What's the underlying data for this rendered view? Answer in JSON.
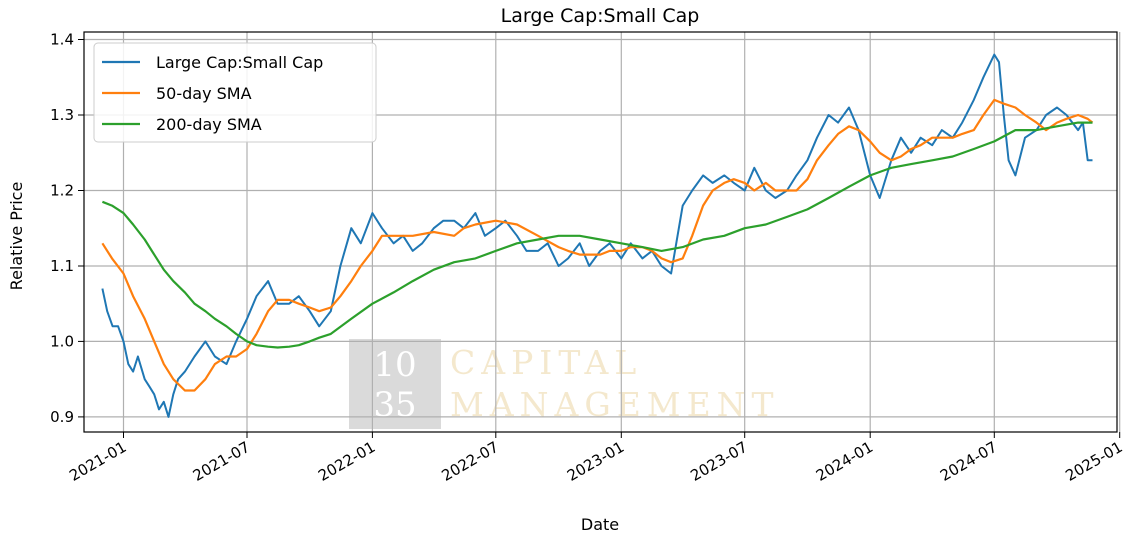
{
  "chart_data": {
    "type": "line",
    "title": "Large Cap:Small Cap",
    "xlabel": "Date",
    "ylabel": "Relative Price",
    "xlim": [
      "2020-11-04",
      "2024-12-28"
    ],
    "ylim": [
      0.88,
      1.41
    ],
    "x_ticks": [
      "2021-01",
      "2021-07",
      "2022-01",
      "2022-07",
      "2023-01",
      "2023-07",
      "2024-01",
      "2024-07",
      "2025-01"
    ],
    "x_tick_dates": [
      "2021-01-01",
      "2021-07-01",
      "2022-01-01",
      "2022-07-01",
      "2023-01-01",
      "2023-07-01",
      "2024-01-01",
      "2024-07-01",
      "2025-01-01"
    ],
    "y_ticks": [
      0.9,
      1.0,
      1.1,
      1.2,
      1.3,
      1.4
    ],
    "y_tick_labels": [
      "0.9",
      "1.0",
      "1.1",
      "1.2",
      "1.3",
      "1.4"
    ],
    "grid": true,
    "legend_position": "top-left",
    "watermark": {
      "box_top": "10",
      "box_bottom": "35",
      "line1": "CAPITAL",
      "line2": "MANAGEMENT"
    },
    "series": [
      {
        "name": "Large Cap:Small Cap",
        "color": "#1f77b4",
        "x": [
          "2020-12-01",
          "2020-12-08",
          "2020-12-16",
          "2020-12-24",
          "2021-01-01",
          "2021-01-08",
          "2021-01-15",
          "2021-01-22",
          "2021-02-01",
          "2021-02-08",
          "2021-02-15",
          "2021-02-22",
          "2021-03-01",
          "2021-03-08",
          "2021-03-15",
          "2021-03-22",
          "2021-04-01",
          "2021-04-15",
          "2021-05-01",
          "2021-05-15",
          "2021-06-01",
          "2021-06-15",
          "2021-07-01",
          "2021-07-15",
          "2021-08-01",
          "2021-08-15",
          "2021-09-01",
          "2021-09-15",
          "2021-10-01",
          "2021-10-15",
          "2021-11-01",
          "2021-11-15",
          "2021-12-01",
          "2021-12-15",
          "2022-01-01",
          "2022-01-15",
          "2022-02-01",
          "2022-02-15",
          "2022-03-01",
          "2022-03-15",
          "2022-04-01",
          "2022-04-15",
          "2022-05-01",
          "2022-05-15",
          "2022-06-01",
          "2022-06-15",
          "2022-07-01",
          "2022-07-15",
          "2022-08-01",
          "2022-08-15",
          "2022-09-01",
          "2022-09-15",
          "2022-10-01",
          "2022-10-15",
          "2022-11-01",
          "2022-11-15",
          "2022-12-01",
          "2022-12-15",
          "2023-01-01",
          "2023-01-15",
          "2023-02-01",
          "2023-02-15",
          "2023-03-01",
          "2023-03-15",
          "2023-04-01",
          "2023-04-15",
          "2023-05-01",
          "2023-05-15",
          "2023-06-01",
          "2023-06-15",
          "2023-07-01",
          "2023-07-15",
          "2023-08-01",
          "2023-08-15",
          "2023-09-01",
          "2023-09-15",
          "2023-10-01",
          "2023-10-15",
          "2023-11-01",
          "2023-11-15",
          "2023-12-01",
          "2023-12-15",
          "2024-01-01",
          "2024-01-15",
          "2024-02-01",
          "2024-02-15",
          "2024-03-01",
          "2024-03-15",
          "2024-04-01",
          "2024-04-15",
          "2024-05-01",
          "2024-05-15",
          "2024-06-01",
          "2024-06-15",
          "2024-07-01",
          "2024-07-08",
          "2024-07-15",
          "2024-07-22",
          "2024-08-01",
          "2024-08-15",
          "2024-09-01",
          "2024-09-15",
          "2024-10-01",
          "2024-10-15",
          "2024-11-01",
          "2024-11-08",
          "2024-11-15",
          "2024-11-22"
        ],
        "values": [
          1.07,
          1.04,
          1.02,
          1.02,
          1.0,
          0.97,
          0.96,
          0.98,
          0.95,
          0.94,
          0.93,
          0.91,
          0.92,
          0.9,
          0.93,
          0.95,
          0.96,
          0.98,
          1.0,
          0.98,
          0.97,
          1.0,
          1.03,
          1.06,
          1.08,
          1.05,
          1.05,
          1.06,
          1.04,
          1.02,
          1.04,
          1.1,
          1.15,
          1.13,
          1.17,
          1.15,
          1.13,
          1.14,
          1.12,
          1.13,
          1.15,
          1.16,
          1.16,
          1.15,
          1.17,
          1.14,
          1.15,
          1.16,
          1.14,
          1.12,
          1.12,
          1.13,
          1.1,
          1.11,
          1.13,
          1.1,
          1.12,
          1.13,
          1.11,
          1.13,
          1.11,
          1.12,
          1.1,
          1.09,
          1.18,
          1.2,
          1.22,
          1.21,
          1.22,
          1.21,
          1.2,
          1.23,
          1.2,
          1.19,
          1.2,
          1.22,
          1.24,
          1.27,
          1.3,
          1.29,
          1.31,
          1.28,
          1.22,
          1.19,
          1.24,
          1.27,
          1.25,
          1.27,
          1.26,
          1.28,
          1.27,
          1.29,
          1.32,
          1.35,
          1.38,
          1.37,
          1.3,
          1.24,
          1.22,
          1.27,
          1.28,
          1.3,
          1.31,
          1.3,
          1.28,
          1.29,
          1.24,
          1.24
        ]
      },
      {
        "name": "50-day SMA",
        "color": "#ff7f0e",
        "x": [
          "2020-12-01",
          "2020-12-15",
          "2021-01-01",
          "2021-01-15",
          "2021-02-01",
          "2021-02-15",
          "2021-03-01",
          "2021-03-15",
          "2021-04-01",
          "2021-04-15",
          "2021-05-01",
          "2021-05-15",
          "2021-06-01",
          "2021-06-15",
          "2021-07-01",
          "2021-07-15",
          "2021-08-01",
          "2021-08-15",
          "2021-09-01",
          "2021-09-15",
          "2021-10-01",
          "2021-10-15",
          "2021-11-01",
          "2021-11-15",
          "2021-12-01",
          "2021-12-15",
          "2022-01-01",
          "2022-01-15",
          "2022-02-01",
          "2022-03-01",
          "2022-04-01",
          "2022-05-01",
          "2022-05-15",
          "2022-06-01",
          "2022-07-01",
          "2022-08-01",
          "2022-09-01",
          "2022-10-01",
          "2022-10-15",
          "2022-11-01",
          "2022-12-01",
          "2022-12-15",
          "2023-01-01",
          "2023-01-15",
          "2023-02-01",
          "2023-02-15",
          "2023-03-01",
          "2023-03-15",
          "2023-04-01",
          "2023-04-15",
          "2023-05-01",
          "2023-05-15",
          "2023-06-01",
          "2023-06-15",
          "2023-07-01",
          "2023-07-15",
          "2023-08-01",
          "2023-08-15",
          "2023-09-01",
          "2023-09-15",
          "2023-10-01",
          "2023-10-15",
          "2023-11-01",
          "2023-11-15",
          "2023-12-01",
          "2023-12-15",
          "2024-01-01",
          "2024-01-15",
          "2024-02-01",
          "2024-02-15",
          "2024-03-01",
          "2024-03-15",
          "2024-04-01",
          "2024-04-15",
          "2024-05-01",
          "2024-05-15",
          "2024-06-01",
          "2024-06-15",
          "2024-07-01",
          "2024-07-15",
          "2024-08-01",
          "2024-08-15",
          "2024-09-01",
          "2024-09-15",
          "2024-10-01",
          "2024-10-15",
          "2024-11-01",
          "2024-11-15",
          "2024-11-22"
        ],
        "values": [
          1.13,
          1.11,
          1.09,
          1.06,
          1.03,
          1.0,
          0.97,
          0.95,
          0.935,
          0.935,
          0.95,
          0.97,
          0.98,
          0.98,
          0.99,
          1.01,
          1.04,
          1.055,
          1.055,
          1.05,
          1.045,
          1.04,
          1.045,
          1.06,
          1.08,
          1.1,
          1.12,
          1.14,
          1.14,
          1.14,
          1.145,
          1.14,
          1.15,
          1.155,
          1.16,
          1.155,
          1.14,
          1.125,
          1.12,
          1.115,
          1.115,
          1.12,
          1.12,
          1.125,
          1.125,
          1.12,
          1.11,
          1.105,
          1.11,
          1.14,
          1.18,
          1.2,
          1.21,
          1.215,
          1.21,
          1.2,
          1.21,
          1.2,
          1.2,
          1.2,
          1.215,
          1.24,
          1.26,
          1.275,
          1.285,
          1.28,
          1.265,
          1.25,
          1.24,
          1.245,
          1.255,
          1.26,
          1.27,
          1.27,
          1.27,
          1.275,
          1.28,
          1.3,
          1.32,
          1.315,
          1.31,
          1.3,
          1.29,
          1.28,
          1.29,
          1.295,
          1.3,
          1.295,
          1.29
        ]
      },
      {
        "name": "200-day SMA",
        "color": "#2ca02c",
        "x": [
          "2020-12-01",
          "2020-12-15",
          "2021-01-01",
          "2021-01-15",
          "2021-02-01",
          "2021-02-15",
          "2021-03-01",
          "2021-03-15",
          "2021-04-01",
          "2021-04-15",
          "2021-05-01",
          "2021-05-15",
          "2021-06-01",
          "2021-06-15",
          "2021-07-01",
          "2021-07-15",
          "2021-08-01",
          "2021-08-15",
          "2021-09-01",
          "2021-09-15",
          "2021-10-01",
          "2021-10-15",
          "2021-11-01",
          "2021-12-01",
          "2022-01-01",
          "2022-02-01",
          "2022-03-01",
          "2022-04-01",
          "2022-05-01",
          "2022-06-01",
          "2022-07-01",
          "2022-08-01",
          "2022-09-01",
          "2022-10-01",
          "2022-11-01",
          "2022-12-01",
          "2023-01-01",
          "2023-02-01",
          "2023-03-01",
          "2023-04-01",
          "2023-05-01",
          "2023-06-01",
          "2023-07-01",
          "2023-08-01",
          "2023-09-01",
          "2023-10-01",
          "2023-11-01",
          "2023-12-01",
          "2024-01-01",
          "2024-02-01",
          "2024-03-01",
          "2024-04-01",
          "2024-05-01",
          "2024-06-01",
          "2024-07-01",
          "2024-08-01",
          "2024-09-01",
          "2024-10-01",
          "2024-11-01",
          "2024-11-22"
        ],
        "values": [
          1.185,
          1.18,
          1.17,
          1.155,
          1.135,
          1.115,
          1.095,
          1.08,
          1.065,
          1.05,
          1.04,
          1.03,
          1.02,
          1.01,
          1.0,
          0.995,
          0.993,
          0.992,
          0.993,
          0.995,
          1.0,
          1.005,
          1.01,
          1.03,
          1.05,
          1.065,
          1.08,
          1.095,
          1.105,
          1.11,
          1.12,
          1.13,
          1.135,
          1.14,
          1.14,
          1.135,
          1.13,
          1.125,
          1.12,
          1.125,
          1.135,
          1.14,
          1.15,
          1.155,
          1.165,
          1.175,
          1.19,
          1.205,
          1.22,
          1.23,
          1.235,
          1.24,
          1.245,
          1.255,
          1.265,
          1.28,
          1.28,
          1.285,
          1.29,
          1.29
        ]
      }
    ]
  }
}
